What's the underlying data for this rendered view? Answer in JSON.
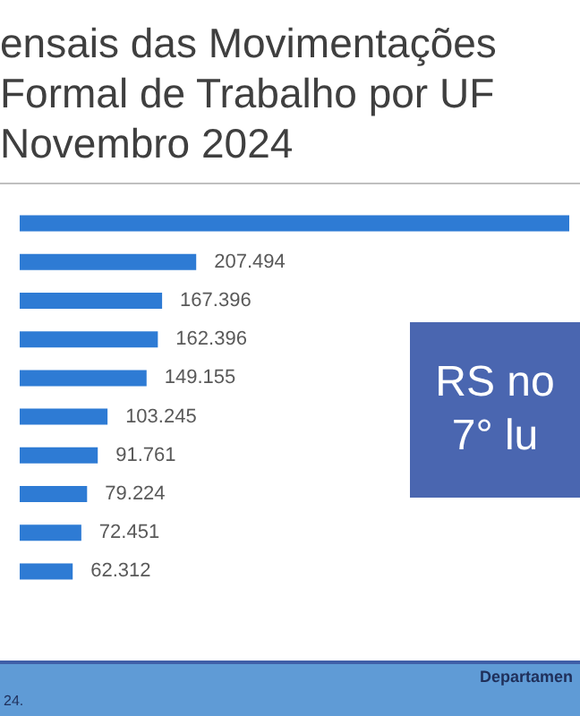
{
  "chart_data": {
    "type": "bar",
    "orientation": "horizontal",
    "title": "ensais das Movimentações\nFormal de Trabalho por UF\nNovembro 2024",
    "categories": [
      null,
      null,
      null,
      null,
      null,
      null,
      null,
      null,
      null,
      null
    ],
    "values": [
      646000,
      207494,
      167396,
      162396,
      149155,
      103245,
      91761,
      79224,
      72451,
      62312
    ],
    "value_labels": [
      null,
      "207.494",
      "167.396",
      "162.396",
      "149.155",
      "103.245",
      "91.761",
      "79.224",
      "72.451",
      "62.312"
    ],
    "color": "#2e7bd4",
    "annotations": [
      "RS no\n7° lu",
      "Departamen",
      "24."
    ]
  }
}
